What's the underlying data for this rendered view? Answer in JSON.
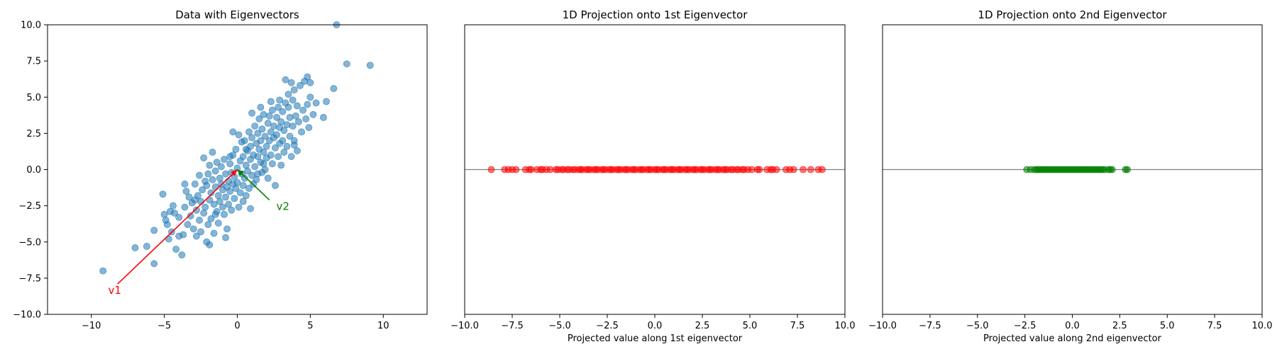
{
  "chart_data": [
    {
      "type": "scatter",
      "title": "Data with Eigenvectors",
      "xlabel": "",
      "ylabel": "",
      "xlim": [
        -13,
        13
      ],
      "ylim": [
        -10,
        10
      ],
      "xticks": [
        -10,
        -5,
        0,
        5,
        10
      ],
      "yticks": [
        -10.0,
        -7.5,
        -5.0,
        -2.5,
        0.0,
        2.5,
        5.0,
        7.5,
        10.0
      ],
      "xtick_labels": [
        "−10",
        "−5",
        "0",
        "5",
        "10"
      ],
      "ytick_labels": [
        "−10.0",
        "−7.5",
        "−5.0",
        "−2.5",
        "0.0",
        "2.5",
        "5.0",
        "7.5",
        "10.0"
      ],
      "grid": false,
      "point_color": "#1f77b4",
      "point_alpha": 0.55,
      "points": [
        [
          -9.2,
          -7.0
        ],
        [
          -7.0,
          -5.4
        ],
        [
          -6.2,
          -5.3
        ],
        [
          -5.7,
          -4.2
        ],
        [
          -5.7,
          -6.5
        ],
        [
          -5.1,
          -1.7
        ],
        [
          -5.0,
          -3.1
        ],
        [
          -4.9,
          -3.5
        ],
        [
          -4.8,
          -3.8
        ],
        [
          -4.7,
          -4.8
        ],
        [
          -4.5,
          -4.3
        ],
        [
          -4.4,
          -2.5
        ],
        [
          -4.3,
          -3.0
        ],
        [
          -4.2,
          -5.5
        ],
        [
          -4.0,
          -3.3
        ],
        [
          -4.0,
          -4.6
        ],
        [
          -3.8,
          -5.9
        ],
        [
          -3.7,
          -4.5
        ],
        [
          -3.6,
          -2.6
        ],
        [
          -3.5,
          -1.5
        ],
        [
          -3.4,
          -3.8
        ],
        [
          -3.3,
          -1.9
        ],
        [
          -3.2,
          -3.2
        ],
        [
          -3.1,
          -2.3
        ],
        [
          -3.0,
          -4.1
        ],
        [
          -2.9,
          -1.0
        ],
        [
          -2.8,
          -2.8
        ],
        [
          -2.8,
          -4.6
        ],
        [
          -2.7,
          -1.8
        ],
        [
          -2.6,
          -3.5
        ],
        [
          -2.6,
          -0.4
        ],
        [
          -2.5,
          -2.2
        ],
        [
          -2.5,
          -4.3
        ],
        [
          -2.4,
          -1.4
        ],
        [
          -2.3,
          -3.0
        ],
        [
          -2.3,
          0.8
        ],
        [
          -2.2,
          -2.6
        ],
        [
          -2.1,
          -1.1
        ],
        [
          -2.1,
          -5.0
        ],
        [
          -2.0,
          -3.8
        ],
        [
          -2.0,
          -0.3
        ],
        [
          -1.9,
          -2.1
        ],
        [
          -1.9,
          0.3
        ],
        [
          -1.8,
          -1.6
        ],
        [
          -1.8,
          -3.4
        ],
        [
          -1.7,
          -0.7
        ],
        [
          -1.7,
          1.2
        ],
        [
          -1.6,
          -2.4
        ],
        [
          -1.6,
          -4.4
        ],
        [
          -1.5,
          -1.2
        ],
        [
          -1.5,
          -0.1
        ],
        [
          -1.4,
          -2.9
        ],
        [
          -1.4,
          0.5
        ],
        [
          -1.3,
          -1.8
        ],
        [
          -1.3,
          -3.7
        ],
        [
          -1.2,
          -0.6
        ],
        [
          -1.2,
          -2.2
        ],
        [
          -1.1,
          -1.0
        ],
        [
          -1.1,
          0.2
        ],
        [
          -1.0,
          -2.6
        ],
        [
          -1.0,
          -1.4
        ],
        [
          -0.9,
          -3.1
        ],
        [
          -0.9,
          0.7
        ],
        [
          -0.8,
          -0.3
        ],
        [
          -0.8,
          -1.9
        ],
        [
          -0.7,
          -1.2
        ],
        [
          -0.7,
          -4.1
        ],
        [
          -0.6,
          -0.8
        ],
        [
          -0.6,
          -2.4
        ],
        [
          -0.5,
          0.4
        ],
        [
          -0.5,
          -1.5
        ],
        [
          -0.4,
          -0.2
        ],
        [
          -0.4,
          -2.8
        ],
        [
          -0.3,
          1.0
        ],
        [
          -0.3,
          -1.0
        ],
        [
          -0.2,
          -0.5
        ],
        [
          -0.2,
          -2.0
        ],
        [
          -0.1,
          1.4
        ],
        [
          -0.1,
          -1.3
        ],
        [
          0.0,
          0.1
        ],
        [
          0.0,
          -0.9
        ],
        [
          0.1,
          -2.6
        ],
        [
          0.1,
          2.4
        ],
        [
          0.2,
          0.6
        ],
        [
          0.2,
          -1.6
        ],
        [
          0.3,
          -0.3
        ],
        [
          0.3,
          1.9
        ],
        [
          0.4,
          -1.1
        ],
        [
          0.4,
          0.9
        ],
        [
          0.5,
          -0.6
        ],
        [
          0.5,
          2.0
        ],
        [
          0.6,
          0.3
        ],
        [
          0.6,
          -1.8
        ],
        [
          0.7,
          1.3
        ],
        [
          0.7,
          -0.1
        ],
        [
          0.8,
          2.6
        ],
        [
          0.8,
          -1.3
        ],
        [
          0.9,
          0.7
        ],
        [
          0.9,
          1.6
        ],
        [
          1.0,
          -0.4
        ],
        [
          1.0,
          2.2
        ],
        [
          1.1,
          1.0
        ],
        [
          1.1,
          -1.0
        ],
        [
          1.2,
          3.0
        ],
        [
          1.2,
          0.2
        ],
        [
          1.3,
          1.8
        ],
        [
          1.3,
          -0.7
        ],
        [
          1.4,
          2.5
        ],
        [
          1.4,
          0.9
        ],
        [
          1.5,
          1.4
        ],
        [
          1.5,
          3.5
        ],
        [
          1.6,
          0.5
        ],
        [
          1.6,
          2.0
        ],
        [
          1.7,
          -0.2
        ],
        [
          1.7,
          2.8
        ],
        [
          1.8,
          1.2
        ],
        [
          1.8,
          3.8
        ],
        [
          1.9,
          0.0
        ],
        [
          1.9,
          2.3
        ],
        [
          2.0,
          1.6
        ],
        [
          2.0,
          0.8
        ],
        [
          2.1,
          3.2
        ],
        [
          2.1,
          -0.6
        ],
        [
          2.2,
          2.0
        ],
        [
          2.2,
          3.7
        ],
        [
          2.3,
          1.0
        ],
        [
          2.3,
          2.6
        ],
        [
          2.4,
          4.1
        ],
        [
          2.4,
          0.4
        ],
        [
          2.5,
          2.2
        ],
        [
          2.5,
          3.0
        ],
        [
          2.6,
          1.5
        ],
        [
          2.6,
          -1.1
        ],
        [
          2.7,
          3.6
        ],
        [
          2.7,
          2.4
        ],
        [
          2.8,
          0.9
        ],
        [
          2.8,
          4.3
        ],
        [
          2.9,
          1.8
        ],
        [
          2.9,
          2.9
        ],
        [
          3.0,
          0.3
        ],
        [
          3.0,
          3.3
        ],
        [
          3.1,
          2.0
        ],
        [
          3.1,
          4.0
        ],
        [
          3.2,
          1.2
        ],
        [
          3.2,
          2.7
        ],
        [
          3.3,
          4.6
        ],
        [
          3.3,
          6.2
        ],
        [
          3.4,
          3.1
        ],
        [
          3.4,
          1.6
        ],
        [
          3.5,
          4.3
        ],
        [
          3.5,
          5.2
        ],
        [
          3.6,
          2.3
        ],
        [
          3.6,
          3.6
        ],
        [
          3.7,
          6.0
        ],
        [
          3.7,
          0.9
        ],
        [
          3.8,
          4.8
        ],
        [
          3.8,
          3.0
        ],
        [
          3.9,
          2.0
        ],
        [
          3.9,
          5.5
        ],
        [
          4.0,
          3.7
        ],
        [
          4.1,
          1.3
        ],
        [
          4.1,
          4.4
        ],
        [
          4.2,
          3.3
        ],
        [
          4.3,
          5.8
        ],
        [
          4.4,
          2.6
        ],
        [
          4.5,
          4.1
        ],
        [
          4.6,
          6.1
        ],
        [
          4.7,
          3.5
        ],
        [
          4.8,
          6.4
        ],
        [
          4.8,
          4.5
        ],
        [
          4.9,
          2.9
        ],
        [
          5.0,
          5.0
        ],
        [
          5.0,
          6.0
        ],
        [
          5.2,
          3.8
        ],
        [
          5.4,
          4.6
        ],
        [
          5.9,
          3.6
        ],
        [
          6.1,
          4.7
        ],
        [
          6.6,
          5.6
        ],
        [
          6.8,
          10.0
        ],
        [
          7.5,
          7.3
        ],
        [
          9.1,
          7.2
        ],
        [
          -2.2,
          -0.8
        ],
        [
          -1.5,
          -3.1
        ],
        [
          -0.8,
          -4.7
        ],
        [
          0.4,
          -2.2
        ],
        [
          1.0,
          3.9
        ],
        [
          1.6,
          4.3
        ],
        [
          -3.6,
          -1.0
        ],
        [
          -4.6,
          -2.9
        ],
        [
          -2.9,
          -2.1
        ],
        [
          -0.3,
          2.6
        ],
        [
          0.9,
          -2.7
        ],
        [
          2.3,
          4.7
        ],
        [
          3.9,
          1.7
        ],
        [
          -1.9,
          -5.2
        ],
        [
          1.4,
          -0.3
        ],
        [
          -0.5,
          0.9
        ],
        [
          0.6,
          1.4
        ],
        [
          1.8,
          0.4
        ],
        [
          2.9,
          4.8
        ]
      ],
      "eigenvectors": [
        {
          "label": "v1",
          "dx": -8.2,
          "dy": -7.9,
          "color": "#ff0000"
        },
        {
          "label": "v2",
          "dx": 2.2,
          "dy": -2.1,
          "color": "#008000"
        }
      ]
    },
    {
      "type": "scatter",
      "title": "1D Projection onto 1st Eigenvector",
      "xlabel": "Projected value along 1st eigenvector",
      "ylabel": "",
      "xlim": [
        -10,
        10
      ],
      "xticks": [
        -10.0,
        -7.5,
        -5.0,
        -2.5,
        0.0,
        2.5,
        5.0,
        7.5,
        10.0
      ],
      "xtick_labels": [
        "−10.0",
        "−7.5",
        "−5.0",
        "−2.5",
        "0.0",
        "2.5",
        "5.0",
        "7.5",
        "10.0"
      ],
      "grid": false,
      "point_color": "#ff0000",
      "point_alpha": 0.55,
      "values": [
        -8.6,
        -7.9,
        -7.7,
        -7.5,
        -7.3,
        -6.8,
        -6.6,
        -6.5,
        -6.2,
        -6.0,
        -5.9,
        -5.7,
        -5.5,
        -5.2,
        -5.1,
        -4.9,
        -4.8,
        -4.6,
        -4.5,
        -4.3,
        -4.2,
        -4.0,
        -3.9,
        -3.8,
        -3.6,
        -3.5,
        -3.4,
        -3.2,
        -3.1,
        -3.0,
        -2.8,
        -2.7,
        -2.6,
        -2.4,
        -2.3,
        -2.2,
        -2.0,
        -1.9,
        -1.8,
        -1.6,
        -1.5,
        -1.4,
        -1.2,
        -1.1,
        -1.0,
        -0.8,
        -0.7,
        -0.6,
        -0.4,
        -0.3,
        -0.2,
        0.0,
        0.1,
        0.2,
        0.4,
        0.5,
        0.6,
        0.8,
        0.9,
        1.0,
        1.2,
        1.3,
        1.4,
        1.6,
        1.7,
        1.8,
        2.0,
        2.1,
        2.2,
        2.4,
        2.5,
        2.6,
        2.8,
        2.9,
        3.0,
        3.2,
        3.3,
        3.4,
        3.6,
        3.7,
        3.8,
        4.0,
        4.1,
        4.3,
        4.4,
        4.6,
        4.7,
        4.9,
        5.1,
        5.4,
        5.5,
        5.9,
        6.1,
        6.2,
        6.4,
        6.9,
        7.1,
        7.3,
        7.8,
        8.2,
        8.6,
        8.8
      ]
    },
    {
      "type": "scatter",
      "title": "1D Projection onto 2nd Eigenvector",
      "xlabel": "Projected value along 2nd eigenvector",
      "ylabel": "",
      "xlim": [
        -10,
        10
      ],
      "xticks": [
        -10.0,
        -7.5,
        -5.0,
        -2.5,
        0.0,
        2.5,
        5.0,
        7.5,
        10.0
      ],
      "xtick_labels": [
        "−10.0",
        "−7.5",
        "−5.0",
        "−2.5",
        "0.0",
        "2.5",
        "5.0",
        "7.5",
        "10.0"
      ],
      "grid": false,
      "point_color": "#008000",
      "point_alpha": 0.6,
      "values": [
        -2.4,
        -2.2,
        -2.0,
        -1.9,
        -1.8,
        -1.7,
        -1.6,
        -1.5,
        -1.4,
        -1.3,
        -1.2,
        -1.1,
        -1.0,
        -0.9,
        -0.8,
        -0.7,
        -0.6,
        -0.5,
        -0.4,
        -0.3,
        -0.2,
        -0.1,
        0.0,
        0.1,
        0.2,
        0.3,
        0.4,
        0.5,
        0.6,
        0.7,
        0.8,
        0.9,
        1.0,
        1.1,
        1.2,
        1.3,
        1.4,
        1.5,
        1.6,
        1.7,
        1.9,
        2.0,
        2.1,
        2.8,
        2.9
      ]
    }
  ]
}
